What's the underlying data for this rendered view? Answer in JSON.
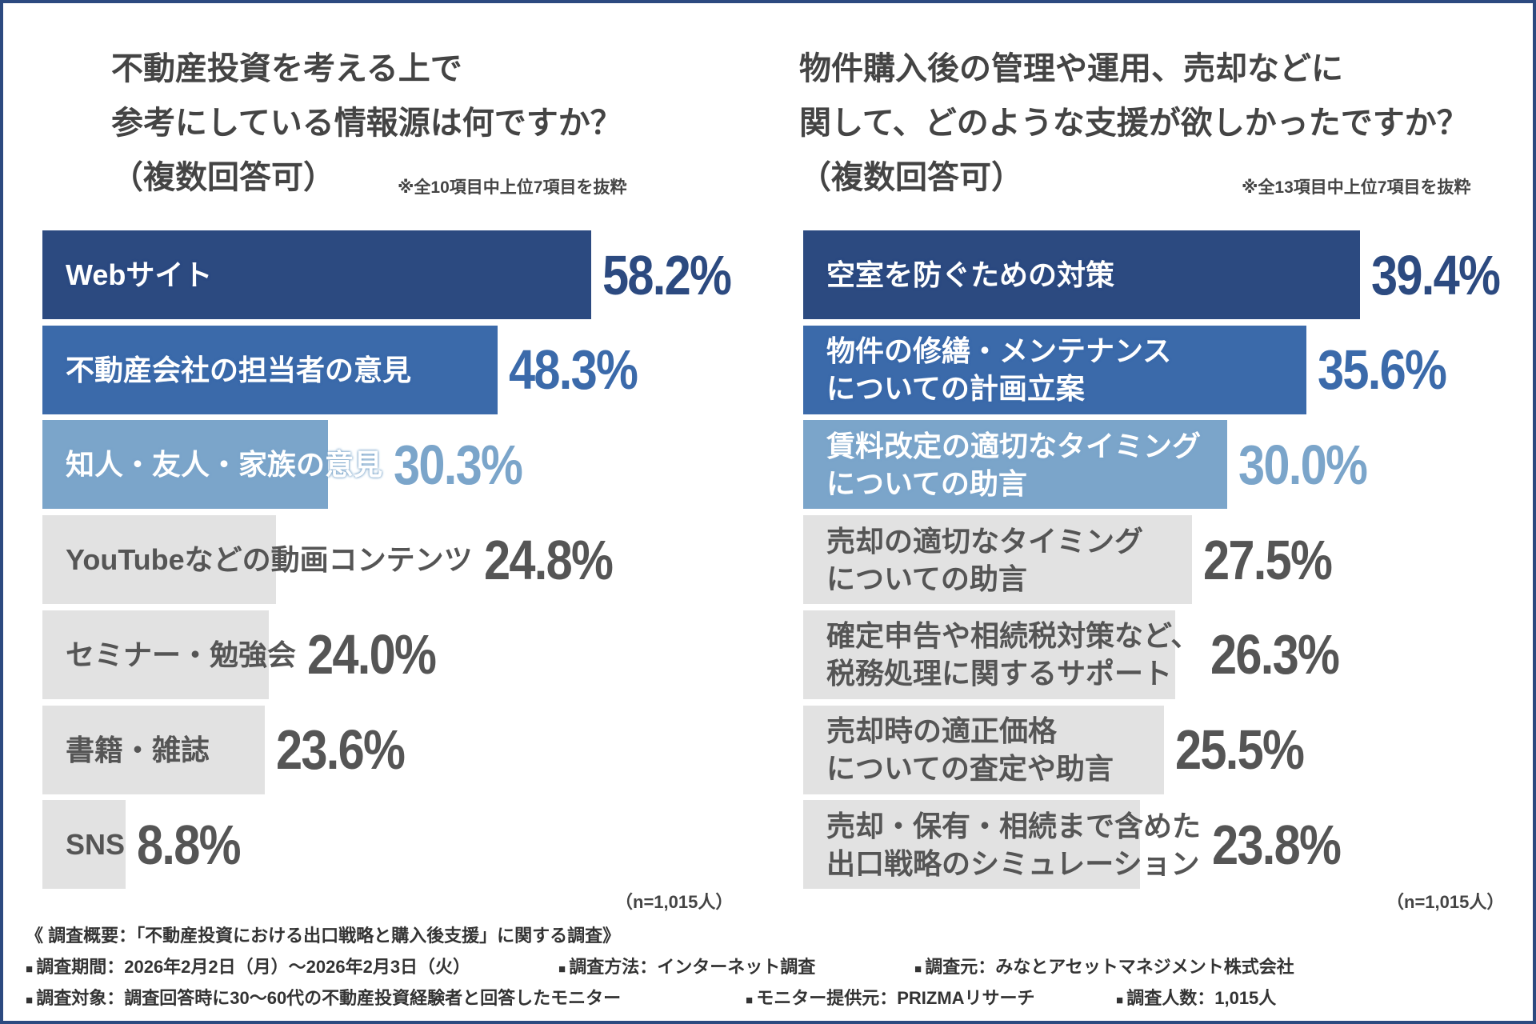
{
  "chart_data": [
    {
      "type": "bar",
      "title": "不動産投資を考える上で\n参考にしている情報源は何ですか？\n（複数回答可）",
      "note": "※全10項目中上位7項目を抜粋",
      "sample": "（n=1,015人）",
      "categories": [
        "Webサイト",
        "不動産会社の担当者の意見",
        "知人・友人・家族の意見",
        "YouTubeなどの動画コンテンツ",
        "セミナー・勉強会",
        "書籍・雑誌",
        "SNS"
      ],
      "values": [
        58.2,
        48.3,
        30.3,
        24.8,
        24.0,
        23.6,
        8.8
      ],
      "value_labels": [
        "58.2%",
        "48.3%",
        "30.3%",
        "24.8%",
        "24.0%",
        "23.6%",
        "8.8%"
      ],
      "colors": [
        "#2c4a80",
        "#3b6aaa",
        "#7ba5ca",
        "#e2e2e2",
        "#e2e2e2",
        "#e2e2e2",
        "#e2e2e2"
      ],
      "value_colors": [
        "#2c4a80",
        "#3b6aaa",
        "#7ba5ca",
        "#555555",
        "#555555",
        "#555555",
        "#555555"
      ],
      "text_colors": [
        "#ffffff",
        "#ffffff",
        "#ffffff",
        "#555555",
        "#555555",
        "#555555",
        "#555555"
      ],
      "xlim": [
        0,
        60
      ]
    },
    {
      "type": "bar",
      "title": "物件購入後の管理や運用、売却などに\n関して、どのような支援が欲しかったですか？\n（複数回答可）",
      "note": "※全13項目中上位7項目を抜粋",
      "sample": "（n=1,015人）",
      "categories": [
        "空室を防ぐための対策",
        "物件の修繕・メンテナンス\nについての計画立案",
        "賃料改定の適切なタイミング\nについての助言",
        "売却の適切なタイミング\nについての助言",
        "確定申告や相続税対策など、\n税務処理に関するサポート",
        "売却時の適正価格\nについての査定や助言",
        "売却・保有・相続まで含めた\n出口戦略のシミュレーション"
      ],
      "values": [
        39.4,
        35.6,
        30.0,
        27.5,
        26.3,
        25.5,
        23.8
      ],
      "value_labels": [
        "39.4%",
        "35.6%",
        "30.0%",
        "27.5%",
        "26.3%",
        "25.5%",
        "23.8%"
      ],
      "colors": [
        "#2c4a80",
        "#3b6aaa",
        "#7ba5ca",
        "#e2e2e2",
        "#e2e2e2",
        "#e2e2e2",
        "#e2e2e2"
      ],
      "value_colors": [
        "#2c4a80",
        "#3b6aaa",
        "#7ba5ca",
        "#555555",
        "#555555",
        "#555555",
        "#555555"
      ],
      "text_colors": [
        "#ffffff",
        "#ffffff",
        "#ffffff",
        "#555555",
        "#555555",
        "#555555",
        "#555555"
      ],
      "xlim": [
        0,
        40
      ]
    }
  ],
  "footer": {
    "title": "《 調査概要：「不動産投資における出口戦略と購入後支援」に関する調査》",
    "rows": [
      [
        "調査期間：2026年2月2日（月）〜2026年2月3日（火）",
        "調査方法：インターネット調査",
        "調査元：みなとアセットマネジメント株式会社"
      ],
      [
        "調査対象：調査回答時に30〜60代の不動産投資経験者と回答したモニター",
        "モニター提供元：PRIZMAリサーチ",
        "調査人数：1,015人"
      ]
    ]
  }
}
